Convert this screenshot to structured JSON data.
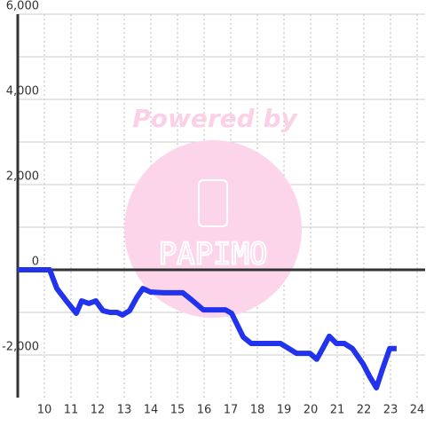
{
  "chart_data": {
    "type": "line",
    "watermark": {
      "text": "Powered by",
      "logo": "PAPIMO"
    },
    "x": [
      9,
      10.2,
      10.47,
      10.8,
      11.2,
      11.4,
      11.67,
      11.93,
      12.2,
      12.47,
      12.73,
      12.93,
      13.2,
      13.47,
      13.7,
      13.97,
      14.47,
      15.2,
      15.5,
      15.97,
      16.8,
      17.03,
      17.47,
      17.77,
      18.2,
      18.87,
      19.13,
      19.47,
      19.97,
      20.23,
      20.47,
      20.7,
      20.97,
      21.27,
      21.57,
      21.97,
      22.23,
      22.47,
      22.7,
      22.97,
      23.23
    ],
    "series": [
      {
        "color": "#2233ee",
        "values": [
          0,
          0,
          -440,
          -710,
          -1020,
          -730,
          -790,
          -730,
          -960,
          -1000,
          -1000,
          -1060,
          -960,
          -650,
          -440,
          -520,
          -540,
          -540,
          -690,
          -940,
          -940,
          -1020,
          -1580,
          -1730,
          -1730,
          -1730,
          -1830,
          -1960,
          -1960,
          -2100,
          -1830,
          -1560,
          -1730,
          -1730,
          -1850,
          -2210,
          -2520,
          -2770,
          -2330,
          -1850,
          -1850
        ]
      }
    ],
    "xlim": [
      9,
      24.3
    ],
    "xticks": [
      10,
      11,
      12,
      13,
      14,
      15,
      16,
      17,
      18,
      19,
      20,
      21,
      22,
      23,
      24
    ],
    "ylim": [
      -3000,
      6000
    ],
    "yticks": [
      {
        "value": 6000,
        "label": "6,000"
      },
      {
        "value": 4000,
        "label": "4,000"
      },
      {
        "value": 2000,
        "label": "2,000"
      },
      0,
      {
        "value": -2000,
        "label": "-2,000"
      }
    ],
    "yminorticks": [
      5000,
      3000,
      1000,
      -1000
    ],
    "grid": true
  }
}
